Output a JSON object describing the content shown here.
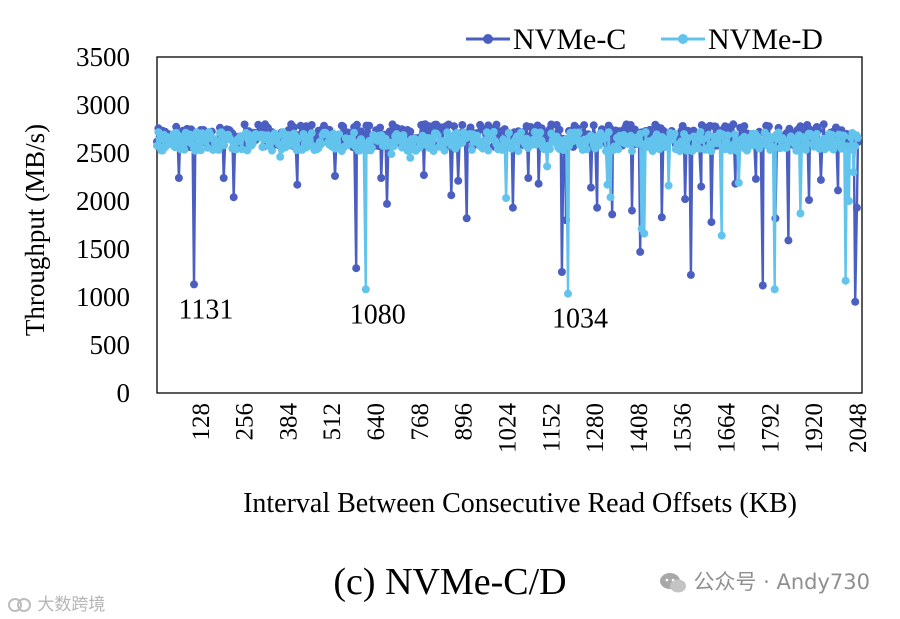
{
  "chart_data": {
    "type": "line",
    "ylabel": "Throughput (MB/s)",
    "xlabel": "Interval Between Consecutive Read Offsets (KB)",
    "ylim": [
      0,
      3500
    ],
    "yticks": [
      "0",
      "500",
      "1000",
      "1500",
      "2000",
      "2500",
      "3000",
      "3500"
    ],
    "xlim": [
      0,
      2060
    ],
    "xticks": [
      "128",
      "256",
      "384",
      "512",
      "640",
      "768",
      "896",
      "1024",
      "1152",
      "1280",
      "1408",
      "1536",
      "1664",
      "1792",
      "1920",
      "2048"
    ],
    "xtick_values": [
      128,
      256,
      384,
      512,
      640,
      768,
      896,
      1024,
      1152,
      1280,
      1408,
      1536,
      1664,
      1792,
      1920,
      2048
    ],
    "legend_position": "top-right",
    "series": [
      {
        "name": "NVMe-C",
        "color": "#4a5fc1",
        "baseline": [
          2560,
          2800
        ],
        "dips": [
          [
            64,
            2240
          ],
          [
            108,
            1131
          ],
          [
            195,
            2240
          ],
          [
            224,
            2040
          ],
          [
            410,
            2170
          ],
          [
            520,
            2260
          ],
          [
            582,
            1300
          ],
          [
            655,
            2240
          ],
          [
            672,
            1970
          ],
          [
            780,
            2270
          ],
          [
            860,
            2060
          ],
          [
            880,
            2210
          ],
          [
            905,
            1820
          ],
          [
            1040,
            1930
          ],
          [
            1085,
            2240
          ],
          [
            1115,
            2180
          ],
          [
            1183,
            1260
          ],
          [
            1195,
            1800
          ],
          [
            1268,
            2140
          ],
          [
            1286,
            1930
          ],
          [
            1330,
            1860
          ],
          [
            1388,
            1900
          ],
          [
            1412,
            1470
          ],
          [
            1475,
            1830
          ],
          [
            1543,
            2020
          ],
          [
            1560,
            1230
          ],
          [
            1590,
            2150
          ],
          [
            1620,
            1780
          ],
          [
            1690,
            2180
          ],
          [
            1750,
            2230
          ],
          [
            1770,
            1120
          ],
          [
            1807,
            1820
          ],
          [
            1845,
            1590
          ],
          [
            1905,
            2010
          ],
          [
            1940,
            2220
          ],
          [
            1990,
            2110
          ],
          [
            2040,
            950
          ],
          [
            2045,
            1930
          ]
        ],
        "labels": [
          {
            "x": 108,
            "y": 1131,
            "text": "1131"
          }
        ]
      },
      {
        "name": "NVMe-D",
        "color": "#62c3ec",
        "baseline": [
          2520,
          2720
        ],
        "dips": [
          [
            40,
            2600
          ],
          [
            360,
            2460
          ],
          [
            610,
            1080
          ],
          [
            685,
            2490
          ],
          [
            740,
            2450
          ],
          [
            1020,
            2030
          ],
          [
            1140,
            2360
          ],
          [
            1201,
            1034
          ],
          [
            1316,
            2170
          ],
          [
            1325,
            2040
          ],
          [
            1416,
            1710
          ],
          [
            1424,
            1660
          ],
          [
            1495,
            2160
          ],
          [
            1650,
            1640
          ],
          [
            1700,
            2190
          ],
          [
            1805,
            1080
          ],
          [
            1880,
            1870
          ],
          [
            2012,
            1170
          ],
          [
            2022,
            2000
          ],
          [
            2035,
            2300
          ]
        ],
        "labels": [
          {
            "x": 610,
            "y": 1080,
            "text": "1080"
          },
          {
            "x": 1201,
            "y": 1034,
            "text": "1034"
          }
        ]
      }
    ]
  },
  "caption": "(c) NVMe-C/D",
  "watermark_right": "公众号 · Andy730",
  "watermark_left": "大数跨境",
  "icons": [
    "wechat-icon",
    "logo-icon"
  ]
}
